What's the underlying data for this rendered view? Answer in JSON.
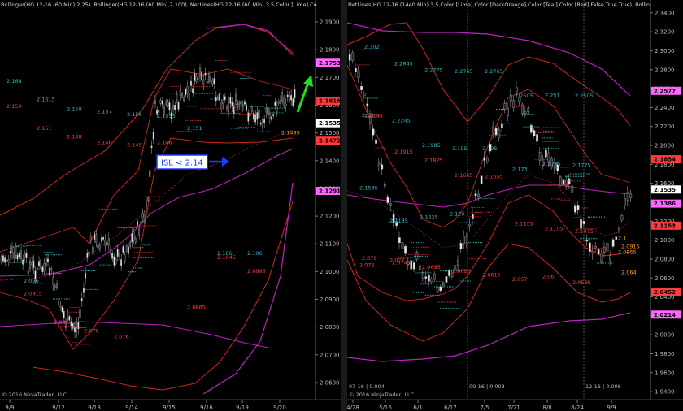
{
  "chart_data": [
    {
      "type": "candlestick",
      "title": "Bollinger(HG 12-16 (60 Min),2,25), Bollinger(HG 12-16 (60 Min),2,100), NetLines(HG 12-16 (60 Min),3,5,Color [Lime],Co",
      "x_ticks": [
        "9/9",
        "9/12",
        "9/13",
        "9/14",
        "9/15",
        "9/16",
        "9/19",
        "9/20"
      ],
      "y_ticks": [
        "2.1900",
        "2.1800",
        "2.1700",
        "2.1600",
        "2.1500",
        "2.1400",
        "2.1300",
        "2.1200",
        "2.1100",
        "2.1000",
        "2.0900",
        "2.0800",
        "2.0700",
        "2.0600"
      ],
      "ylim": [
        2.055,
        2.195
      ],
      "price_markers": [
        {
          "value": 2.1753,
          "label": "2.1753",
          "color": "#ff66ff"
        },
        {
          "value": 2.1616,
          "label": "2.1616",
          "color": "#ff3b3b"
        },
        {
          "value": 2.1535,
          "label": "2.1535",
          "color": "#ffffff"
        },
        {
          "value": 2.1472,
          "label": "2.1472",
          "color": "#ff3b3b"
        },
        {
          "value": 2.1291,
          "label": "2.1291",
          "color": "#ff66ff"
        }
      ],
      "annotation": "ISL < 2.14",
      "footer": "© 2016 NinjaTrader, LLC",
      "level_labels_cyan": [
        "2.168",
        "2.1615",
        "2.158",
        "2.157",
        "2.156",
        "2.1555",
        "2.151",
        "2.106",
        "2.106",
        "2.096",
        "2.081"
      ],
      "level_labels_red": [
        "2.159",
        "2.151",
        "2.148",
        "2.146",
        "2.145",
        "2.146",
        "2.0865",
        "2.1045",
        "2.0995",
        "2.0915",
        "2.081",
        "2.078",
        "2.076"
      ],
      "level_labels_orange": [
        "2.1495"
      ]
    },
    {
      "type": "candlestick",
      "title": "NetLines(HG 12-16 (1440 Min),3,5,Color [Lime],Color [DarkOrange],Color [Teal],Color [Red],False,True,True), Bollin",
      "x_ticks": [
        "4/28",
        "5/16",
        "6/1",
        "6/17",
        "7/5",
        "7/21",
        "8/8",
        "8/24",
        "9/9"
      ],
      "y_ticks": [
        "2.3400",
        "2.3200",
        "2.3000",
        "2.2800",
        "2.2600",
        "2.2400",
        "2.2200",
        "2.2000",
        "2.1800",
        "2.1600",
        "2.1400",
        "2.1200",
        "2.1000",
        "2.0800",
        "2.0600",
        "2.0400",
        "2.0200",
        "2.0000",
        "1.9800",
        "1.9600",
        "1.9400"
      ],
      "ylim": [
        1.935,
        2.345
      ],
      "price_markers": [
        {
          "value": 2.2577,
          "label": "2.2577",
          "color": "#ff66ff"
        },
        {
          "value": 2.1854,
          "label": "2.1854",
          "color": "#ff3b3b"
        },
        {
          "value": 2.1535,
          "label": "2.1535",
          "color": "#ffffff"
        },
        {
          "value": 2.1386,
          "label": "2.1386",
          "color": "#ff66ff"
        },
        {
          "value": 2.1153,
          "label": "2.1153",
          "color": "#ff3b3b"
        },
        {
          "value": 2.0452,
          "label": "2.0452",
          "color": "#ff3b3b"
        },
        {
          "value": 2.0214,
          "label": "2.0214",
          "color": "#ff66ff"
        }
      ],
      "contract_labels": [
        "07-16 | 0.004",
        "09-16 | 0.003",
        "12-16 | 0.006"
      ],
      "footer": "© 2016 NinjaTrader, LLC",
      "level_labels_cyan": [
        "2.302",
        "2.2845",
        "2.2775",
        "2.2765",
        "2.2765",
        "2.2505",
        "2.251",
        "2.2505",
        "2.23",
        "2.2245",
        "2.1985",
        "2.195",
        "2.195",
        "2.173",
        "2.1785",
        "2.1775",
        "2.1535",
        "2.1185",
        "2.1225",
        "2.126"
      ],
      "level_labels_red": [
        "2.2295",
        "2.1915",
        "2.1825",
        "2.1665",
        "2.1655",
        "2.1155",
        "2.1105",
        "2.1075",
        "2.079",
        "2.0745",
        "2.0695",
        "2.0655",
        "2.0615",
        "2.057",
        "2.06",
        "2.0535",
        "2.072",
        "2.077"
      ],
      "level_labels_orange": [
        "2.1",
        "2.0915",
        "2.0855",
        "2.064"
      ]
    }
  ]
}
